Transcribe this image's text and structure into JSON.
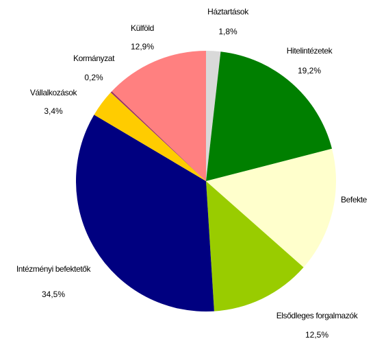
{
  "chart_data": {
    "type": "pie",
    "categories": [
      "Háztartások",
      "Hitelintézetek",
      "Befekte",
      "Elsődleges forgalmazók",
      "Intézményi befektetők",
      "Vállalkozások",
      "Kormányzat",
      "Külföld"
    ],
    "values": [
      1.8,
      19.2,
      15.5,
      12.5,
      34.5,
      3.4,
      0.2,
      12.9
    ],
    "value_labels": [
      "1,8%",
      "19,2%",
      null,
      "12,5%",
      "34,5%",
      "3,4%",
      "0,2%",
      "12,9%"
    ],
    "colors": [
      "#d9d9d9",
      "#007f00",
      "#ffffcc",
      "#99cc00",
      "#000080",
      "#ffcc00",
      "#993366",
      "#ff8080"
    ]
  }
}
